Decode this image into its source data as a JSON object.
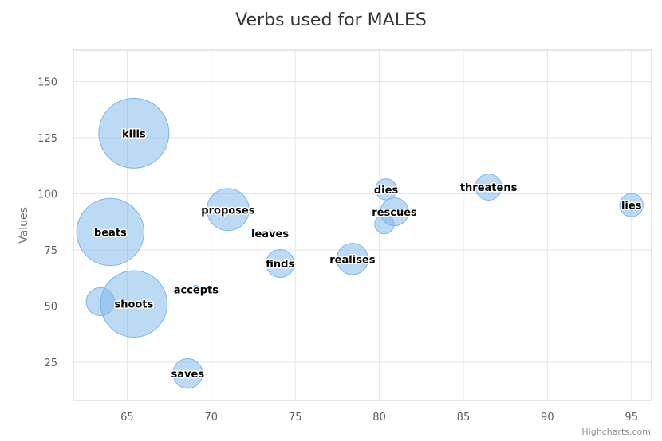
{
  "chart_data": {
    "type": "scatter",
    "subtype": "bubble",
    "title": "Verbs used for MALES",
    "xlabel": "",
    "ylabel": "Values",
    "xlim": [
      61.8,
      96.2
    ],
    "ylim": [
      8,
      164
    ],
    "x_ticks": [
      65,
      70,
      75,
      80,
      85,
      90,
      95
    ],
    "y_ticks": [
      25,
      50,
      75,
      100,
      125,
      150
    ],
    "grid": true,
    "legend": "none",
    "colors": {
      "fill": "#7cb5ec",
      "stroke": "#7cb5ec"
    },
    "points": [
      {
        "label": "kills",
        "x": 65.4,
        "y": 127,
        "z": 50
      },
      {
        "label": "beats",
        "x": 64.0,
        "y": 83,
        "z": 46
      },
      {
        "label": "shoots",
        "x": 65.4,
        "y": 51,
        "z": 45
      },
      {
        "label": "proposes",
        "x": 71.0,
        "y": 93,
        "z": 18
      },
      {
        "label": "",
        "x": 63.4,
        "y": 52,
        "z": 8
      },
      {
        "label": "saves",
        "x": 68.6,
        "y": 20,
        "z": 9
      },
      {
        "label": "finds",
        "x": 74.1,
        "y": 69,
        "z": 8
      },
      {
        "label": "realises",
        "x": 78.4,
        "y": 71,
        "z": 10
      },
      {
        "label": "rescues",
        "x": 80.9,
        "y": 92,
        "z": 8
      },
      {
        "label": "dies",
        "x": 80.4,
        "y": 102,
        "z": 4.5
      },
      {
        "label": "",
        "x": 80.3,
        "y": 86.5,
        "z": 3.8
      },
      {
        "label": "threatens",
        "x": 86.5,
        "y": 103,
        "z": 7
      },
      {
        "label": "lies",
        "x": 95.0,
        "y": 95,
        "z": 5.5
      },
      {
        "label": "accepts",
        "x": 69.1,
        "y": 57.5,
        "z": 0.6
      },
      {
        "label": "leaves",
        "x": 73.5,
        "y": 82.5,
        "z": 0.2
      }
    ]
  },
  "credits": "Highcharts.com"
}
